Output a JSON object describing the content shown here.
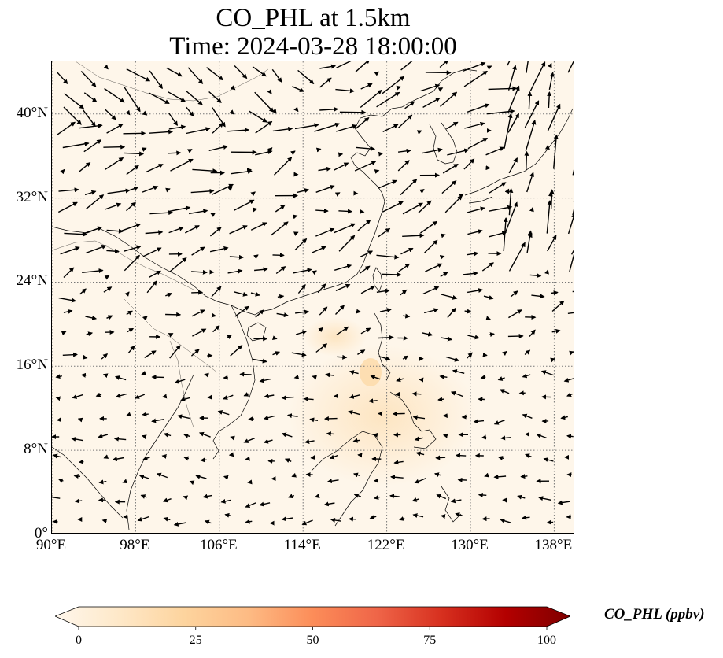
{
  "title": {
    "line1": "CO_PHL at 1.5km",
    "line2": "Time: 2024-03-28 18:00:00"
  },
  "map": {
    "projection": "PlateCarree",
    "lon_range": [
      90,
      140
    ],
    "lat_range": [
      0,
      45
    ],
    "gridlines": "dotted",
    "field_color": "#fef6ea",
    "hotspot_color": "#fde3bd",
    "coastline_color": "#000000",
    "vector_color": "#000000",
    "x_ticks": [
      {
        "value": 90,
        "label": "90°E"
      },
      {
        "value": 98,
        "label": "98°E"
      },
      {
        "value": 106,
        "label": "106°E"
      },
      {
        "value": 114,
        "label": "114°E"
      },
      {
        "value": 122,
        "label": "122°E"
      },
      {
        "value": 130,
        "label": "130°E"
      },
      {
        "value": 138,
        "label": "138°E"
      }
    ],
    "y_ticks": [
      {
        "value": 0,
        "label": "0°"
      },
      {
        "value": 8,
        "label": "8°N"
      },
      {
        "value": 16,
        "label": "16°N"
      },
      {
        "value": 24,
        "label": "24°N"
      },
      {
        "value": 32,
        "label": "32°N"
      },
      {
        "value": 40,
        "label": "40°N"
      }
    ]
  },
  "colorbar": {
    "label": "CO_PHL (ppbv)",
    "min": 0,
    "max": 100,
    "extend": "both",
    "colormap": "OrRd",
    "colors": [
      "#fff7ec",
      "#fee8c8",
      "#fdd49e",
      "#fdbb84",
      "#fc8d59",
      "#ef6548",
      "#d7301f",
      "#b30000",
      "#7f0000"
    ],
    "ticks": [
      {
        "value": 0,
        "label": "0"
      },
      {
        "value": 25,
        "label": "25"
      },
      {
        "value": 50,
        "label": "50"
      },
      {
        "value": 75,
        "label": "75"
      },
      {
        "value": 100,
        "label": "100"
      }
    ]
  }
}
